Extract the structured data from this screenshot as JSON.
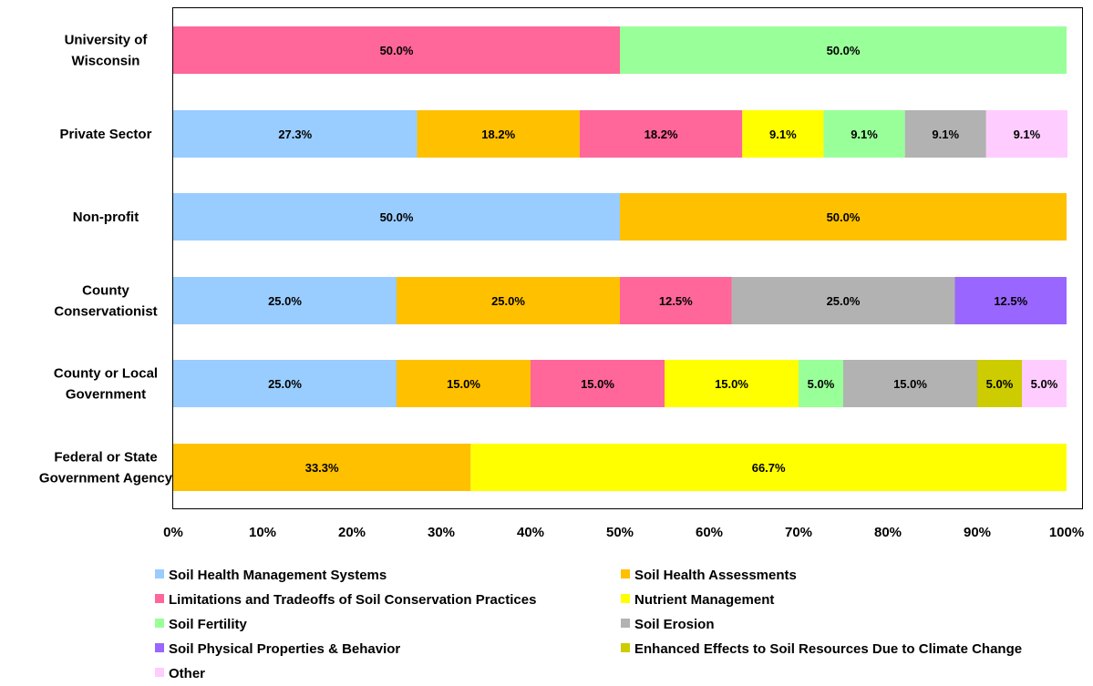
{
  "chart_data": {
    "type": "bar",
    "orientation": "horizontal",
    "stacked": "percent",
    "categories": [
      [
        "University of",
        "Wisconsin"
      ],
      [
        "Private Sector"
      ],
      [
        "Non-profit"
      ],
      [
        "County",
        "Conservationist"
      ],
      [
        "County or Local",
        "Government"
      ],
      [
        "Federal or State",
        "Government Agency"
      ]
    ],
    "series": [
      {
        "name": "Soil Health Management Systems",
        "color": "#99ccff",
        "values": [
          0,
          27.3,
          50.0,
          25.0,
          25.0,
          0
        ]
      },
      {
        "name": "Soil Health Assessments",
        "color": "#ffc000",
        "values": [
          0,
          18.2,
          50.0,
          25.0,
          15.0,
          33.3
        ]
      },
      {
        "name": "Limitations and Tradeoffs of Soil Conservation Practices",
        "color": "#ff6699",
        "values": [
          50.0,
          18.2,
          0,
          12.5,
          15.0,
          0
        ]
      },
      {
        "name": "Nutrient Management",
        "color": "#ffff00",
        "values": [
          0,
          9.1,
          0,
          0,
          15.0,
          66.7
        ]
      },
      {
        "name": "Soil Fertility",
        "color": "#99ff99",
        "values": [
          50.0,
          9.1,
          0,
          0,
          5.0,
          0
        ]
      },
      {
        "name": "Soil Erosion",
        "color": "#b2b2b2",
        "values": [
          0,
          9.1,
          0,
          25.0,
          15.0,
          0
        ]
      },
      {
        "name": "Soil Physical Properties & Behavior",
        "color": "#9966ff",
        "values": [
          0,
          0,
          0,
          12.5,
          0,
          0
        ]
      },
      {
        "name": "Enhanced Effects to Soil Resources Due to Climate Change",
        "color": "#cccc00",
        "values": [
          0,
          0,
          0,
          0,
          5.0,
          0
        ]
      },
      {
        "name": "Other",
        "color": "#ffccff",
        "values": [
          0,
          9.1,
          0,
          0,
          5.0,
          0
        ]
      }
    ],
    "xlim": [
      0,
      100
    ],
    "x_ticks": [
      "0%",
      "10%",
      "20%",
      "30%",
      "40%",
      "50%",
      "60%",
      "70%",
      "80%",
      "90%",
      "100%"
    ],
    "value_format": "percent-1dp",
    "grid": false,
    "legend_position": "bottom",
    "title": "",
    "xlabel": "",
    "ylabel": ""
  }
}
